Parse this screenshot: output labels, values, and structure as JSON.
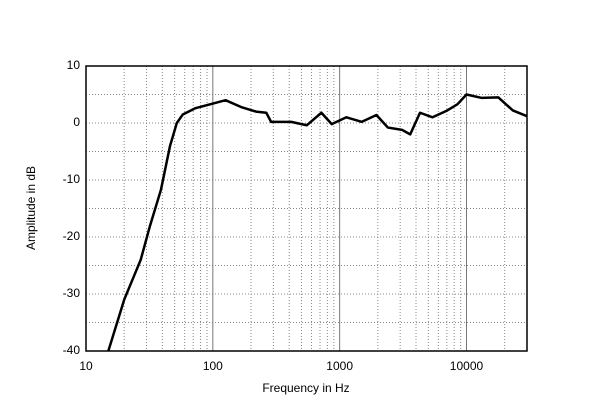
{
  "chart_data": {
    "type": "line",
    "xlabel": "Frequency in Hz",
    "ylabel": "Amplitude in dB",
    "xscale": "log",
    "grid": true,
    "xlim": [
      10,
      30000
    ],
    "ylim": [
      -40,
      10
    ],
    "xticks": [
      10,
      100,
      1000,
      10000
    ],
    "yticks": [
      -40,
      -30,
      -20,
      -10,
      0,
      10
    ],
    "xminorticks": [
      20,
      30,
      40,
      50,
      60,
      70,
      80,
      90,
      200,
      300,
      400,
      500,
      600,
      700,
      800,
      900,
      2000,
      3000,
      4000,
      5000,
      6000,
      7000,
      8000,
      9000,
      20000
    ],
    "yminorticks": [
      -35,
      -25,
      -15,
      -5,
      5
    ],
    "x": [
      15,
      20,
      27,
      32,
      39,
      46,
      52,
      58,
      73,
      96,
      126,
      167,
      219,
      264,
      288,
      415,
      550,
      718,
      866,
      1130,
      1490,
      1950,
      2400,
      3100,
      3600,
      4300,
      5400,
      7050,
      8500,
      10000,
      13200,
      17800,
      23200,
      30000
    ],
    "series": [
      {
        "color": "#000000",
        "values": [
          -40,
          -31,
          -24,
          -18,
          -11.7,
          -4,
          0,
          1.5,
          2.6,
          3.3,
          4,
          2.8,
          2,
          1.8,
          0.2,
          0.2,
          -0.4,
          1.8,
          -0.2,
          1,
          0.2,
          1.4,
          -0.8,
          -1.2,
          -2,
          1.8,
          1,
          2.2,
          3.3,
          5,
          4.4,
          4.5,
          2.2,
          1.2
        ]
      }
    ]
  }
}
